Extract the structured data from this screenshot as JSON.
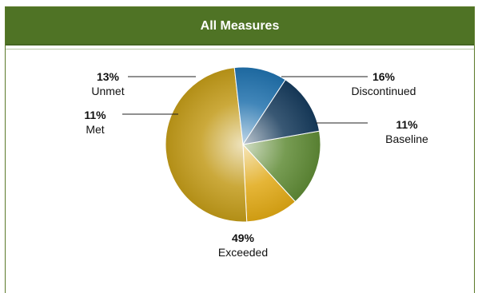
{
  "chart_data": {
    "type": "pie",
    "title": "All Measures",
    "slices": [
      {
        "label": "Discontinued",
        "value": 16,
        "percent_label": "16%",
        "color": "#5f8a35"
      },
      {
        "label": "Baseline",
        "value": 11,
        "percent_label": "11%",
        "color": "#e0a814"
      },
      {
        "label": "Exceeded",
        "value": 49,
        "percent_label": "49%",
        "color": "#c29a18"
      },
      {
        "label": "Met",
        "value": 11,
        "percent_label": "11%",
        "color": "#1f71ad"
      },
      {
        "label": "Unmet",
        "value": 13,
        "percent_label": "13%",
        "color": "#163b5c"
      }
    ],
    "start_angle_deg": -10,
    "direction": "clockwise",
    "legend": "none (leader-line labels)"
  }
}
